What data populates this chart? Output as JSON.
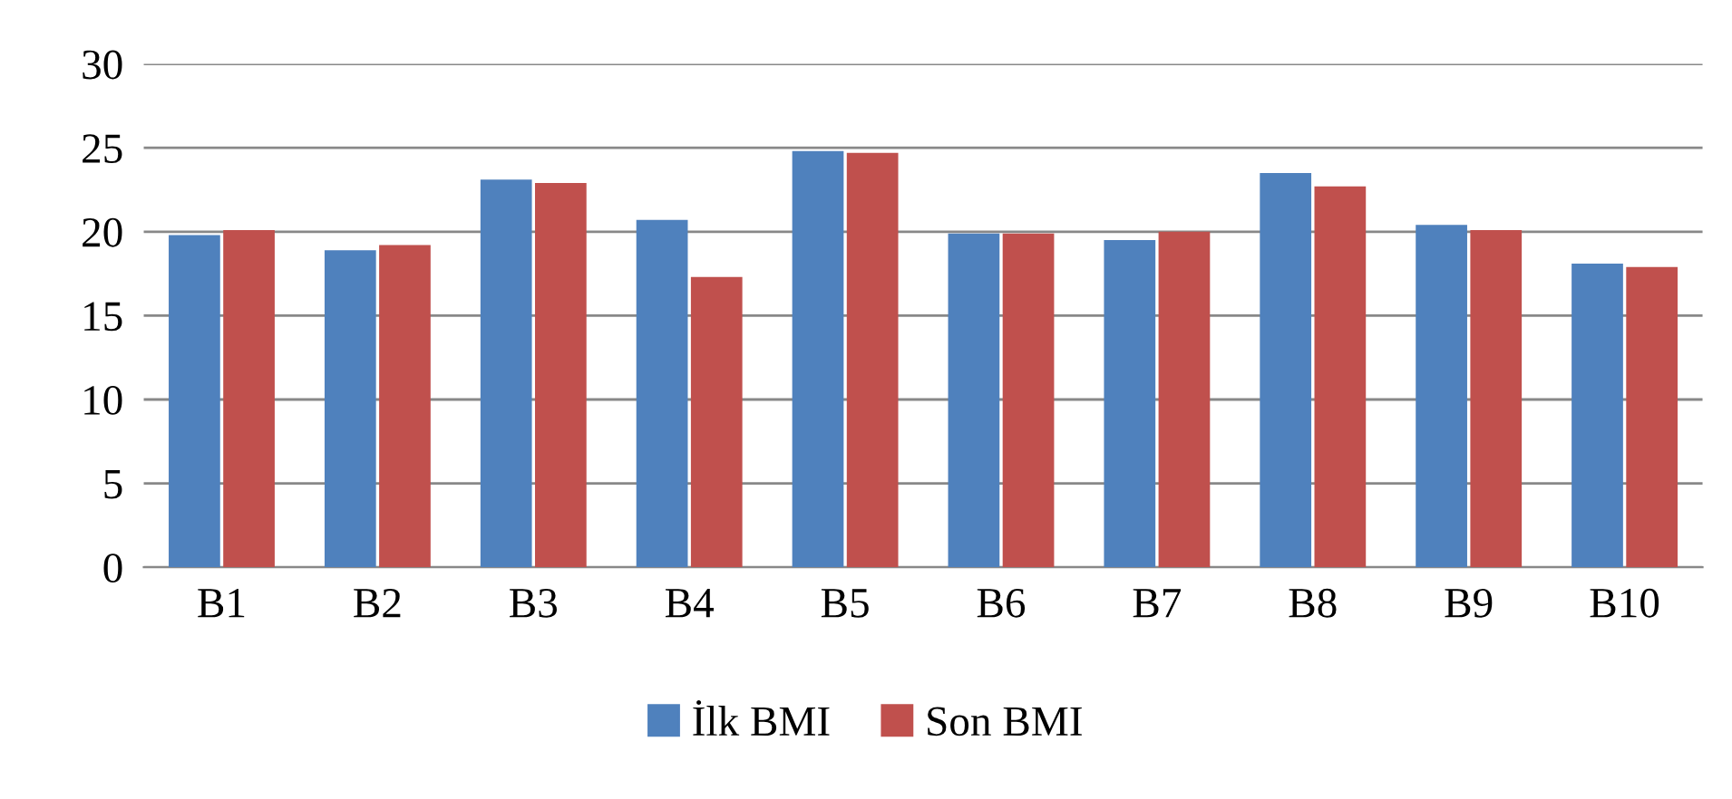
{
  "chart_data": {
    "type": "bar",
    "categories": [
      "B1",
      "B2",
      "B3",
      "B4",
      "B5",
      "B6",
      "B7",
      "B8",
      "B9",
      "B10"
    ],
    "series": [
      {
        "name": "İlk BMI",
        "color": "#4f81bd",
        "values": [
          19.8,
          18.9,
          23.1,
          20.7,
          24.8,
          19.9,
          19.5,
          23.5,
          20.4,
          18.1
        ]
      },
      {
        "name": "Son BMI",
        "color": "#c0504d",
        "values": [
          20.1,
          19.2,
          22.9,
          17.3,
          24.7,
          19.9,
          20.0,
          22.7,
          20.1,
          17.9
        ]
      }
    ],
    "ylim": [
      0,
      30
    ],
    "yticks": [
      0,
      5,
      10,
      15,
      20,
      25,
      30
    ],
    "grid": "y",
    "legend": "bottom"
  }
}
